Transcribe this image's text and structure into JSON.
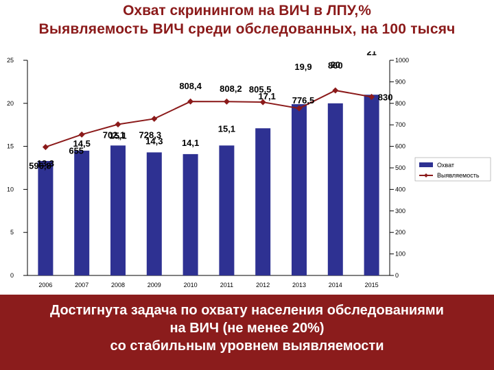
{
  "title": {
    "line1": "Охват скринингом на ВИЧ в ЛПУ,%",
    "line2": "Выявляемость ВИЧ среди обследованных, на 100 тысяч"
  },
  "colors": {
    "bar": "#2e3192",
    "line": "#8b1a1a",
    "title": "#8b1a1a",
    "box": "#8b1c1c"
  },
  "chart_data": {
    "type": "bar",
    "categories": [
      "2006",
      "2007",
      "2008",
      "2009",
      "2010",
      "2011",
      "2012",
      "2013",
      "2014",
      "2015"
    ],
    "series": [
      {
        "name": "Охват",
        "axis": "left",
        "values": [
          13.3,
          14.5,
          15.1,
          14.3,
          14.1,
          15.1,
          17.1,
          19.9,
          20,
          21
        ],
        "labels": [
          "13,3",
          "14,5",
          "15,1",
          "14,3",
          "14,1",
          "15,1",
          "17,1",
          "19,9",
          "20",
          "21"
        ]
      },
      {
        "name": "Выявляемость",
        "type": "line",
        "axis": "right",
        "values": [
          596.8,
          655,
          702.1,
          728.3,
          808.4,
          808.2,
          805.5,
          776.5,
          860,
          830
        ],
        "labels": [
          "596,8",
          "655",
          "702,1",
          "728,3",
          "808,4",
          "808,2",
          "805,5",
          "776,5",
          "860",
          "830"
        ]
      }
    ],
    "y_left": {
      "min": 0,
      "max": 25,
      "ticks": [
        "0",
        "5",
        "10",
        "15",
        "20",
        "25"
      ]
    },
    "y_right": {
      "min": 0,
      "max": 1000,
      "ticks": [
        "0",
        "100",
        "200",
        "300",
        "400",
        "500",
        "600",
        "700",
        "800",
        "900",
        "1000"
      ]
    },
    "legend": {
      "placement": "right",
      "entries": [
        "Охват",
        "Выявляемость"
      ]
    },
    "grid": false
  },
  "footer": {
    "line1": "Достигнута задача по охвату населения обследованиями",
    "line2": "на ВИЧ (не менее 20%)",
    "line3": "со стабильным уровнем выявляемости"
  }
}
